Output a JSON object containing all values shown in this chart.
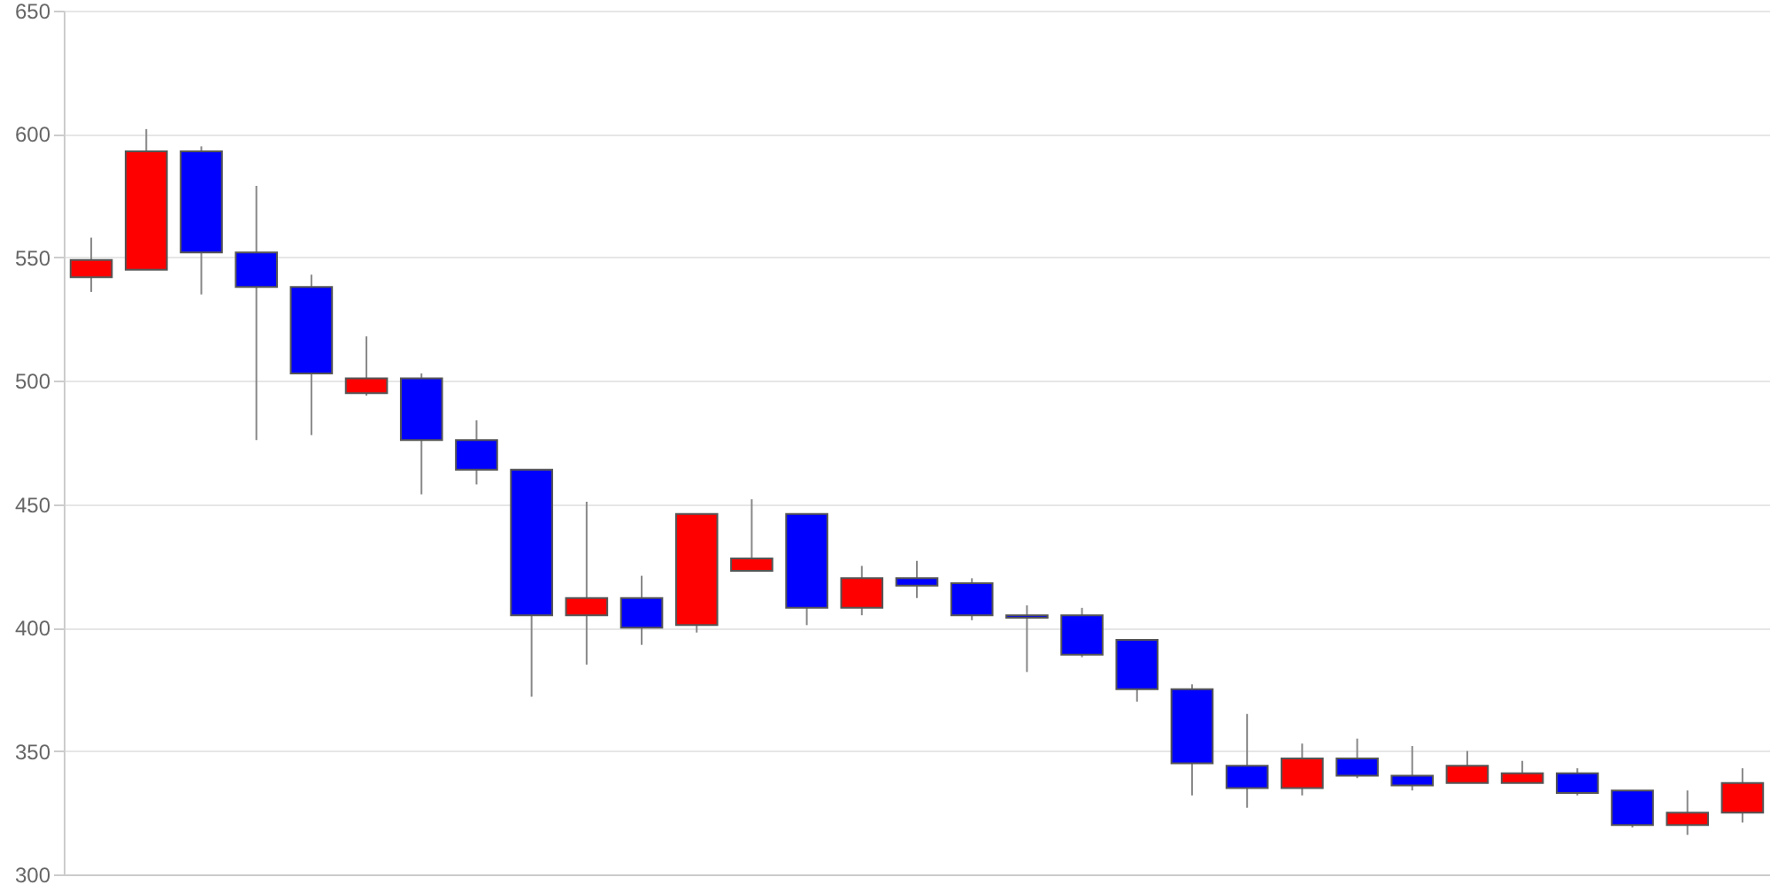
{
  "chart_data": {
    "type": "candlestick",
    "categories": [
      null,
      null,
      null,
      null,
      null,
      null,
      null,
      null,
      null,
      null,
      null,
      null,
      null,
      null,
      null,
      null,
      null,
      null,
      null,
      null,
      null,
      null,
      null,
      null,
      null,
      null,
      null,
      null,
      null,
      null,
      null
    ],
    "ohlc": [
      [
        542,
        558,
        536,
        549
      ],
      [
        545,
        602,
        545,
        593
      ],
      [
        593,
        595,
        535,
        552
      ],
      [
        552,
        579,
        476,
        538
      ],
      [
        538,
        543,
        478,
        503
      ],
      [
        495,
        518,
        494,
        501
      ],
      [
        501,
        503,
        454,
        476
      ],
      [
        476,
        484,
        458,
        464
      ],
      [
        464,
        464,
        372,
        405
      ],
      [
        405,
        451,
        385,
        412
      ],
      [
        412,
        421,
        393,
        400
      ],
      [
        401,
        446,
        398,
        446
      ],
      [
        423,
        452,
        423,
        428
      ],
      [
        446,
        446,
        401,
        408
      ],
      [
        408,
        425,
        405,
        420
      ],
      [
        420,
        427,
        412,
        417
      ],
      [
        418,
        420,
        403,
        405
      ],
      [
        405,
        409,
        382,
        404
      ],
      [
        405,
        408,
        388,
        389
      ],
      [
        395,
        395,
        370,
        375
      ],
      [
        375,
        377,
        332,
        345
      ],
      [
        344,
        365,
        327,
        335
      ],
      [
        335,
        353,
        332,
        347
      ],
      [
        347,
        355,
        339,
        340
      ],
      [
        340,
        352,
        334,
        336
      ],
      [
        337,
        350,
        337,
        344
      ],
      [
        337,
        346,
        337,
        341
      ],
      [
        341,
        343,
        332,
        333
      ],
      [
        334,
        334,
        319,
        320
      ],
      [
        320,
        334,
        316,
        325
      ],
      [
        325,
        343,
        321,
        337
      ]
    ],
    "colors": [
      "#ff0000",
      "#ff0000",
      "#0000ff",
      "#0000ff",
      "#0000ff",
      "#ff0000",
      "#0000ff",
      "#0000ff",
      "#0000ff",
      "#ff0000",
      "#0000ff",
      "#ff0000",
      "#ff0000",
      "#0000ff",
      "#ff0000",
      "#0000ff",
      "#0000ff",
      "#0000ff",
      "#0000ff",
      "#0000ff",
      "#0000ff",
      "#0000ff",
      "#ff0000",
      "#0000ff",
      "#0000ff",
      "#ff0000",
      "#ff0000",
      "#0000ff",
      "#0000ff",
      "#ff0000",
      "#ff0000"
    ],
    "ylim": [
      300,
      650
    ],
    "yticks": [
      300,
      350,
      400,
      450,
      500,
      550,
      600,
      650
    ],
    "grid": "y",
    "tick_labels": "y"
  }
}
